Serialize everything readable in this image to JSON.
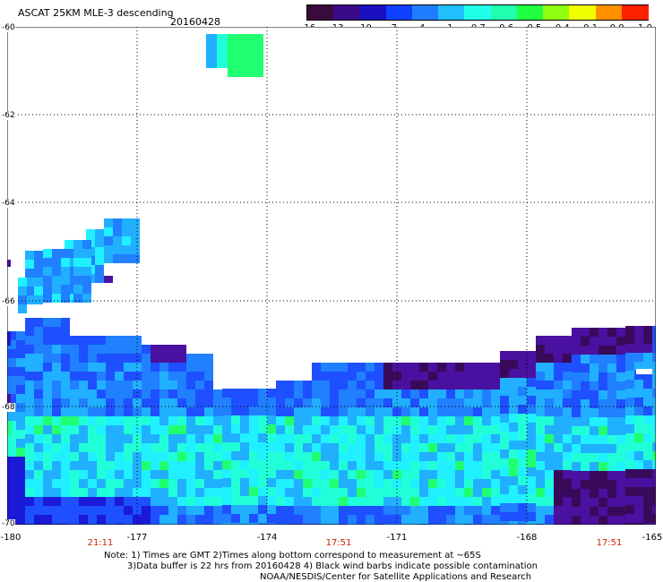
{
  "header": {
    "title": "ASCAT 25KM MLE-3 descending",
    "date": "20160428"
  },
  "colorbar": {
    "ticks": [
      "-16",
      "-13",
      "-10",
      "-7",
      "-4",
      "-1",
      "-0.7",
      "-0.6",
      "-0.5",
      "-0.4",
      "-0.1",
      "0.0",
      "1.0"
    ],
    "colors": [
      "#3a0a3a",
      "#3a0a8a",
      "#1a10c0",
      "#1040ff",
      "#1e7dff",
      "#20c0ff",
      "#20ffe8",
      "#20ffb0",
      "#20ff40",
      "#90ff10",
      "#f0ff00",
      "#ff9000",
      "#ff2000"
    ]
  },
  "axes": {
    "lat_labels": [
      "-60",
      "-62",
      "-64",
      "-66",
      "-68",
      "-70"
    ],
    "lon_labels": [
      "-180",
      "-177",
      "-174",
      "-171",
      "-168",
      "-165"
    ],
    "time_labels": [
      "21:11",
      "17:51",
      "17:51"
    ]
  },
  "palette": {
    "deep_purple": "#3a0a5a",
    "purple": "#4a10a0",
    "blue_dark": "#1a1ad8",
    "blue": "#1e50ff",
    "blue_light": "#2080ff",
    "sky": "#20b0ff",
    "cyan": "#20f0ff",
    "aqua": "#20ffd8",
    "green": "#20ff70"
  },
  "notes": {
    "line1": "Note: 1) Times are GMT 2)Times along bottom correspond to measurement at ~65S",
    "line2": "3)Data buffer is 22 hrs from 20160428 4) Black wind barbs indicate possible contamination",
    "line3": "NOAA/NESDIS/Center for Satellite Applications and Research"
  }
}
